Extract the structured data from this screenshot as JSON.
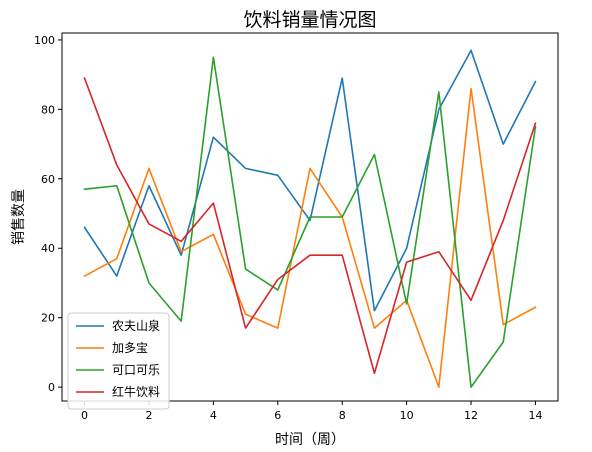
{
  "chart_data": {
    "type": "line",
    "title": "饮料销量情况图",
    "xlabel": "时间（周）",
    "ylabel": "销售数量",
    "x": [
      0,
      1,
      2,
      3,
      4,
      5,
      6,
      7,
      8,
      9,
      10,
      11,
      12,
      13,
      14
    ],
    "xticks": [
      0,
      2,
      4,
      6,
      8,
      10,
      12,
      14
    ],
    "yticks": [
      0,
      20,
      40,
      60,
      80,
      100
    ],
    "xlim": [
      -0.7,
      14.7
    ],
    "ylim": [
      -4,
      102
    ],
    "grid": false,
    "legend_position": "lower-left",
    "series": [
      {
        "name": "农夫山泉",
        "color": "#1f77b4",
        "values": [
          46,
          32,
          58,
          38,
          72,
          63,
          61,
          48,
          89,
          22,
          40,
          80,
          97,
          70,
          88
        ]
      },
      {
        "name": "加多宝",
        "color": "#ff7f0e",
        "values": [
          32,
          37,
          63,
          39,
          44,
          21,
          17,
          63,
          49,
          17,
          25,
          0,
          86,
          18,
          23
        ]
      },
      {
        "name": "可口可乐",
        "color": "#2ca02c",
        "values": [
          57,
          58,
          30,
          19,
          95,
          34,
          28,
          49,
          49,
          67,
          24,
          85,
          0,
          13,
          75
        ]
      },
      {
        "name": "红牛饮料",
        "color": "#d62728",
        "values": [
          89,
          64,
          47,
          42,
          53,
          17,
          31,
          38,
          38,
          4,
          36,
          39,
          25,
          48,
          76
        ]
      }
    ]
  }
}
